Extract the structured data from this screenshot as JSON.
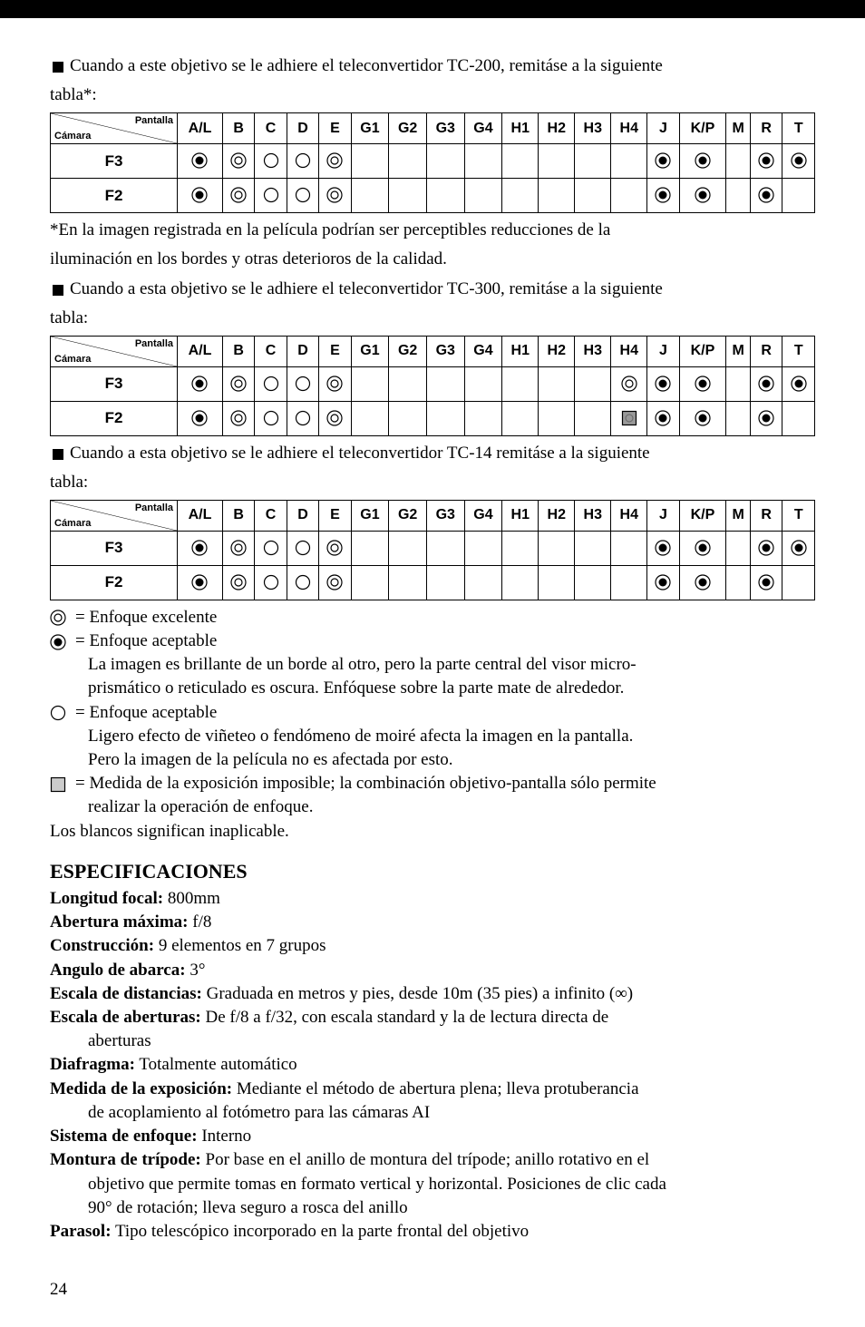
{
  "intro1_a": "Cuando a este objetivo se le adhiere el teleconvertidor TC-200, remitáse a la siguiente",
  "intro1_b": "tabla*:",
  "table_header_pantalla": "Pantalla",
  "table_header_camara": "Cámara",
  "columns": [
    "A/L",
    "B",
    "C",
    "D",
    "E",
    "G1",
    "G2",
    "G3",
    "G4",
    "H1",
    "H2",
    "H3",
    "H4",
    "J",
    "K/P",
    "M",
    "R",
    "T"
  ],
  "row_f3": "F3",
  "row_f2": "F2",
  "tables": {
    "tc200": {
      "f3": [
        "dot",
        "dbl",
        "cir",
        "cir",
        "dbl",
        "",
        "",
        "",
        "",
        "",
        "",
        "",
        "",
        "dot",
        "dot",
        "",
        "dot",
        "dot"
      ],
      "f2": [
        "dot",
        "dbl",
        "cir",
        "cir",
        "dbl",
        "",
        "",
        "",
        "",
        "",
        "",
        "",
        "",
        "dot",
        "dot",
        "",
        "dot",
        ""
      ]
    },
    "tc300": {
      "f3": [
        "dot",
        "dbl",
        "cir",
        "cir",
        "dbl",
        "",
        "",
        "",
        "",
        "",
        "",
        "",
        "dbl",
        "dot",
        "dot",
        "",
        "dot",
        "dot"
      ],
      "f2": [
        "dot",
        "dbl",
        "cir",
        "cir",
        "dbl",
        "",
        "",
        "",
        "",
        "",
        "",
        "",
        "sq",
        "dot",
        "dot",
        "",
        "dot",
        ""
      ]
    },
    "tc14": {
      "f3": [
        "dot",
        "dbl",
        "cir",
        "cir",
        "dbl",
        "",
        "",
        "",
        "",
        "",
        "",
        "",
        "",
        "dot",
        "dot",
        "",
        "dot",
        "dot"
      ],
      "f2": [
        "dot",
        "dbl",
        "cir",
        "cir",
        "dbl",
        "",
        "",
        "",
        "",
        "",
        "",
        "",
        "",
        "dot",
        "dot",
        "",
        "dot",
        ""
      ]
    }
  },
  "note1_a": "*En la imagen registrada en la película podrían ser perceptibles reducciones de la",
  "note1_b": "iluminación en los bordes y otras deterioros de la calidad.",
  "intro2_a": "Cuando a esta objetivo se le adhiere el teleconvertidor TC-300, remitáse a la siguiente",
  "intro2_b": "tabla:",
  "intro3_a": "Cuando a esta objetivo se le adhiere el teleconvertidor TC-14 remitáse a la siguiente",
  "intro3_b": "tabla:",
  "legend": {
    "dbl": "= Enfoque excelente",
    "dot": "= Enfoque aceptable",
    "dot_sub_a": "La imagen es brillante de un borde al otro, pero la parte central del visor micro-",
    "dot_sub_b": "prismático o reticulado es oscura. Enfóquese sobre la parte mate de alrededor.",
    "cir": "= Enfoque aceptable",
    "cir_sub_a": "Ligero efecto de viñeteo o fendómeno de moiré afecta la imagen en la pantalla.",
    "cir_sub_b": "Pero la imagen de la película no es afectada por esto.",
    "sq_a": "= Medida de la exposición imposible; la combinación objetivo-pantalla sólo permite",
    "sq_b": "realizar la operación de enfoque.",
    "blank": "Los blancos significan inaplicable."
  },
  "specs_title": "ESPECIFICACIONES",
  "specs": {
    "focal_l": "Longitud focal:",
    "focal_v": " 800mm",
    "apmax_l": "Abertura máxima:",
    "apmax_v": " f/8",
    "constr_l": "Construcción:",
    "constr_v": " 9 elementos en 7 grupos",
    "ang_l": "Angulo de abarca:",
    "ang_v": " 3°",
    "dist_l": "Escala de distancias:",
    "dist_v": " Graduada en metros y pies, desde 10m (35 pies) a infinito (∞)",
    "apesc_l": "Escala de aberturas:",
    "apesc_v": " De f/8 a f/32, con escala standard y la de lectura directa de",
    "apesc_c": "aberturas",
    "diaf_l": "Diafragma:",
    "diaf_v": " Totalmente automático",
    "med_l": "Medida de la exposición:",
    "med_v": " Mediante el método de abertura plena; lleva protuberancia",
    "med_c": "de acoplamiento al fotómetro para las cámaras AI",
    "sist_l": "Sistema de enfoque:",
    "sist_v": " Interno",
    "mont_l": "Montura de trípode:",
    "mont_v": " Por base en el anillo de montura del trípode; anillo rotativo en el",
    "mont_c1": "objetivo que permite tomas en formato vertical y horizontal. Posiciones de clic cada",
    "mont_c2": "90° de rotación; lleva seguro a rosca del anillo",
    "parasol_l": "Parasol:",
    "parasol_v": " Tipo telescópico incorporado en la parte frontal del objetivo"
  },
  "page_number": "24"
}
